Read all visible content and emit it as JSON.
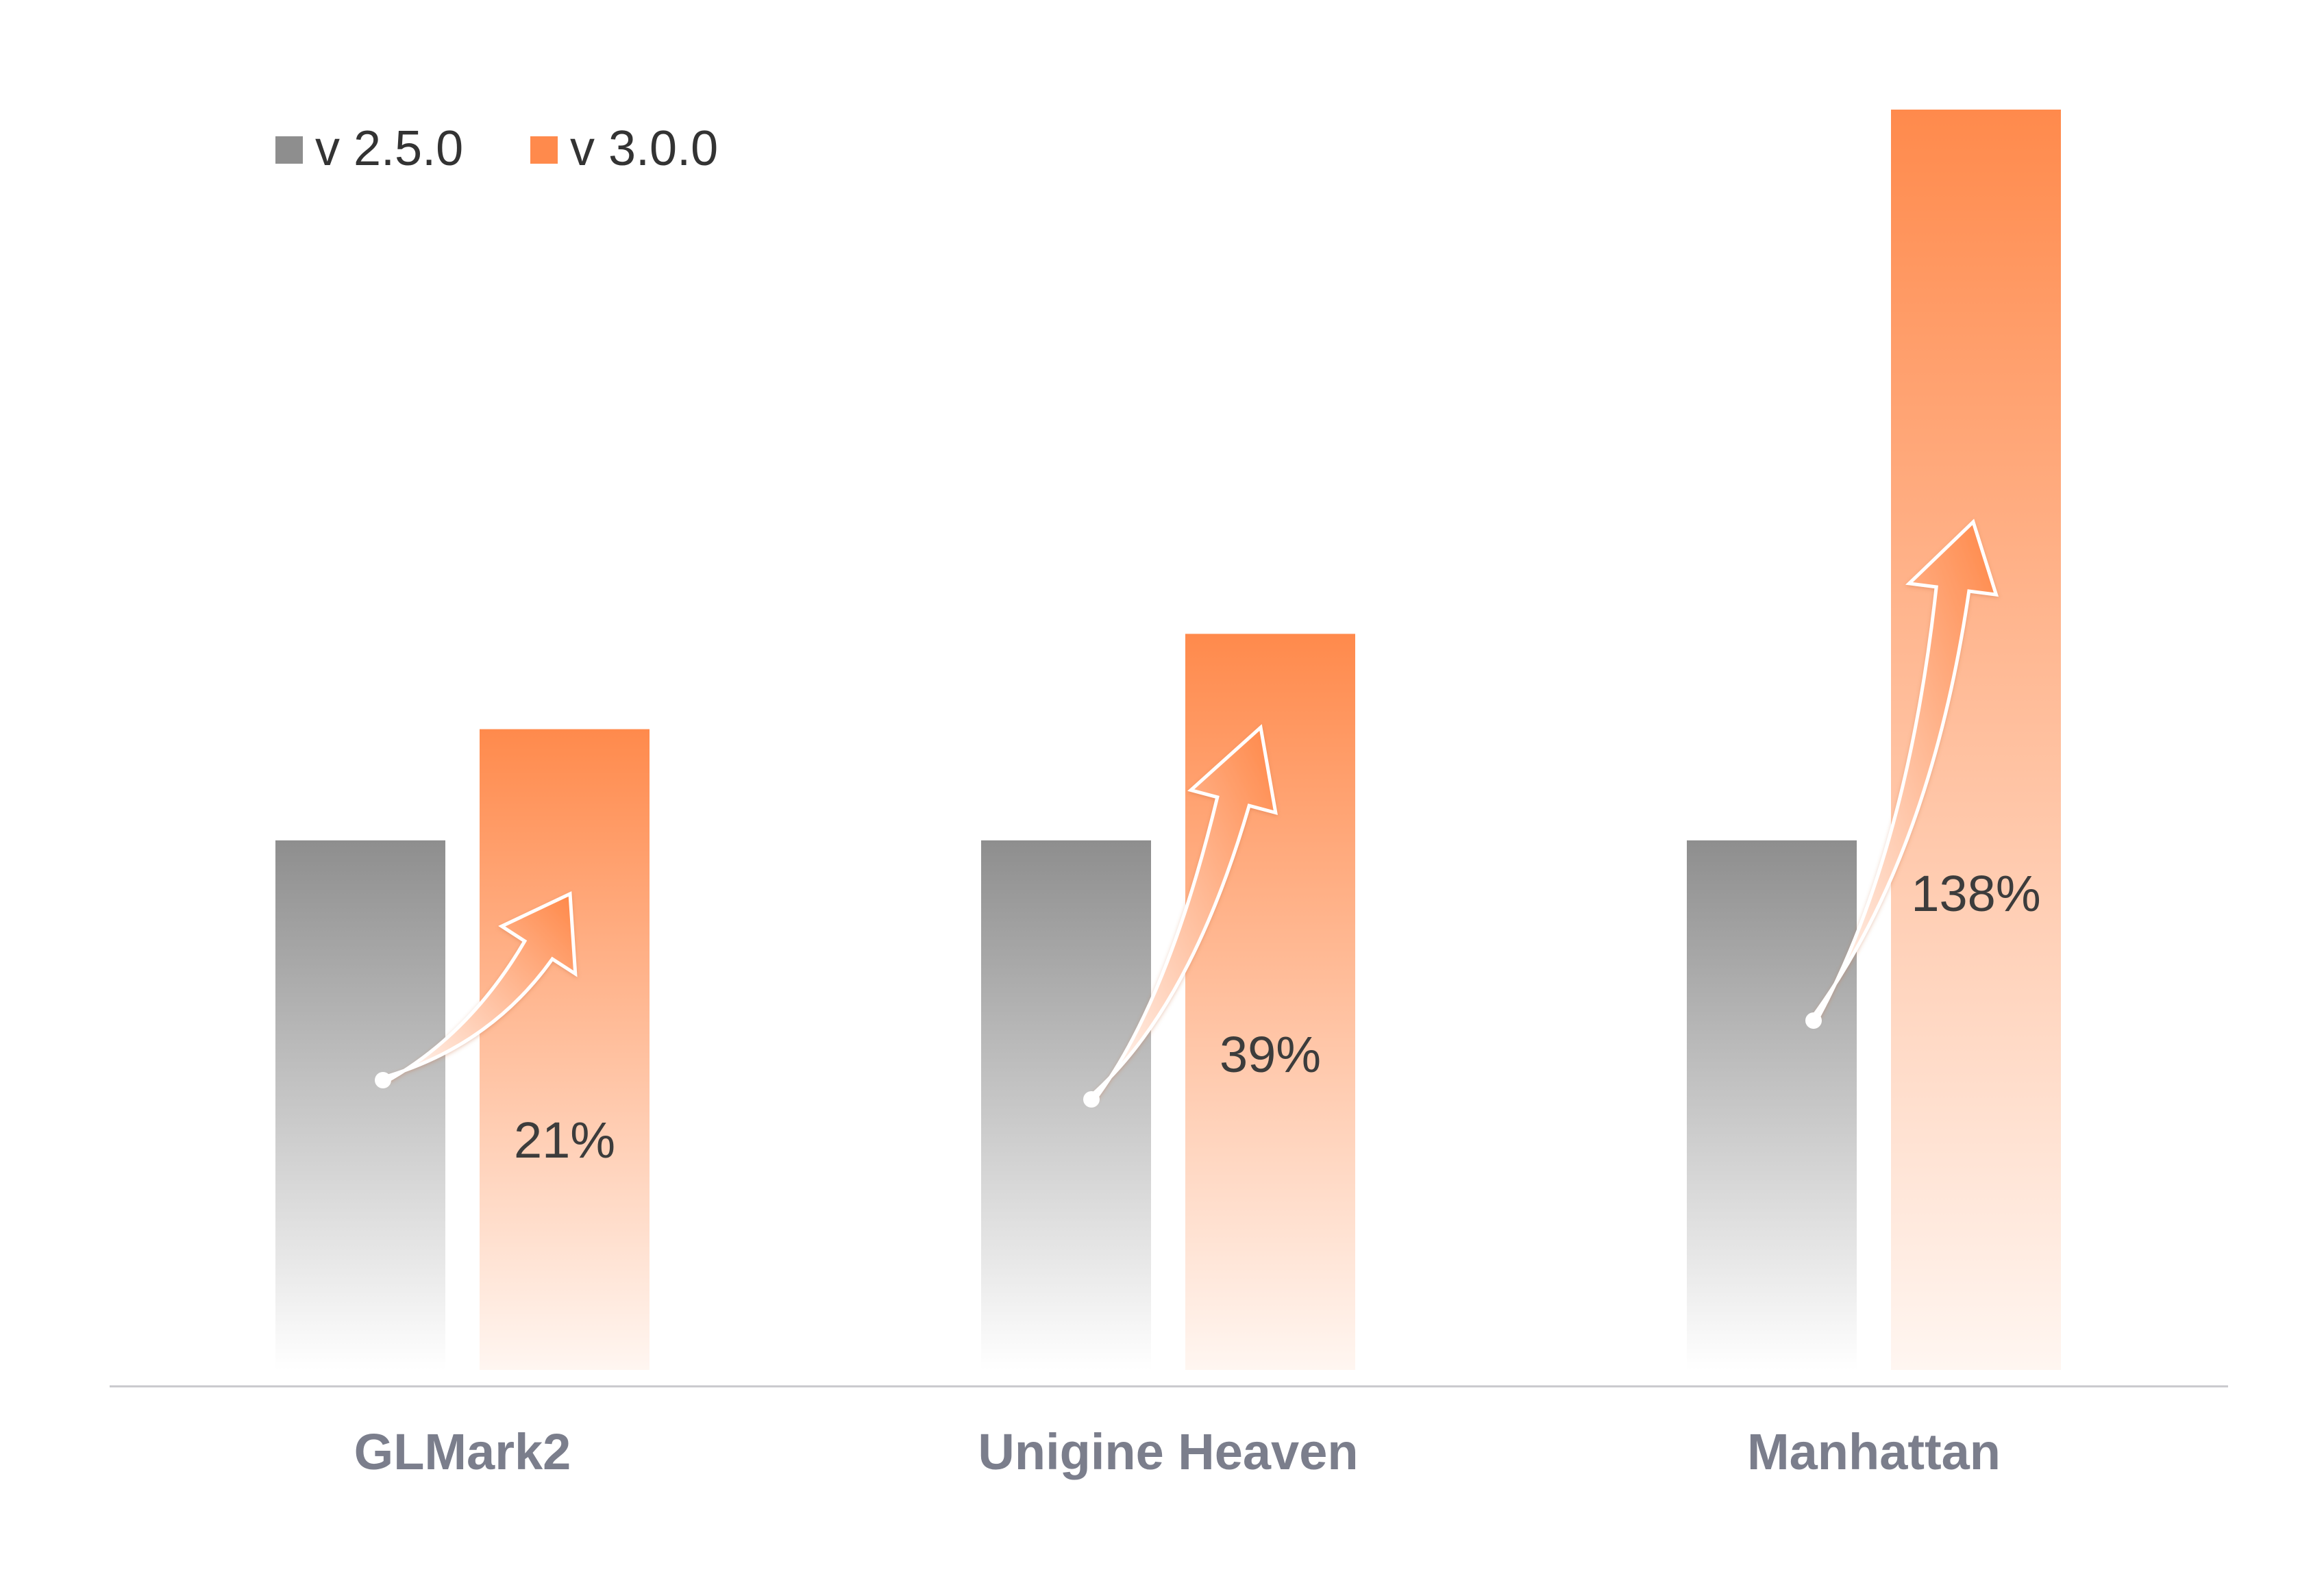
{
  "chart_data": {
    "type": "bar",
    "categories": [
      "GLMark2",
      "Unigine Heaven",
      "Manhattan"
    ],
    "series": [
      {
        "name": "v 2.5.0",
        "values": [
          1.0,
          1.0,
          1.0
        ]
      },
      {
        "name": "v 3.0.0",
        "values": [
          1.21,
          1.39,
          2.38
        ]
      }
    ],
    "improvements": [
      "21%",
      "39%",
      "138%"
    ],
    "ylim": [
      0,
      2.38
    ],
    "grid": false,
    "legend_position": "top-left",
    "colors": {
      "v250_top": "#8e8e8e",
      "v250_bottom": "#ffffff",
      "v300_top": "#ff8a4c",
      "v300_bottom": "#fff6f1",
      "axis": "#c8c8cc",
      "category_label": "#7b7e8c",
      "percent_label": "#3c3c3c",
      "legend_text": "#333333"
    }
  }
}
